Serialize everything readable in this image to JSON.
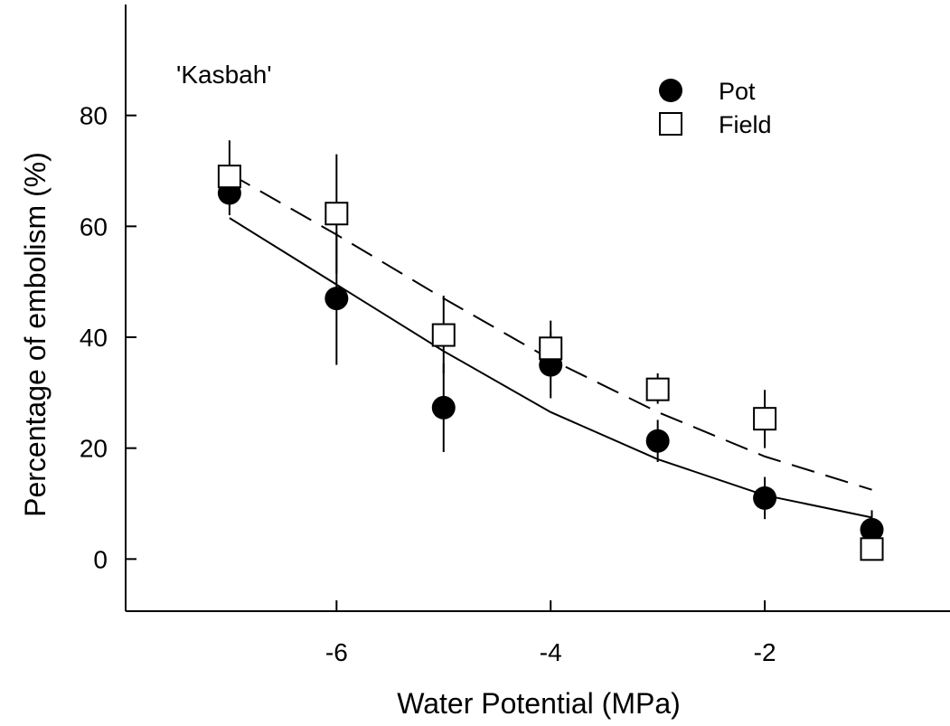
{
  "chart_data": {
    "type": "scatter",
    "annotation": "'Kasbah'",
    "xlabel": "Water Potential (MPa)",
    "ylabel": "Percentage of embolism (%)",
    "xlim": [
      -7.97,
      -0.27
    ],
    "ylim": [
      -9.4,
      100
    ],
    "x_ticks": [
      -6,
      -4,
      -2
    ],
    "y_ticks": [
      0,
      20,
      40,
      60,
      80
    ],
    "grid": false,
    "legend_position": "top-right",
    "series": [
      {
        "name": "Pot",
        "marker": "filled-circle",
        "color": "#000000",
        "points": [
          {
            "x": -7,
            "y": 66,
            "err_low": 62,
            "err_high": 70
          },
          {
            "x": -6,
            "y": 47,
            "err_low": 35,
            "err_high": 59
          },
          {
            "x": -5,
            "y": 27.3,
            "err_low": 19.3,
            "err_high": 35.3
          },
          {
            "x": -4,
            "y": 35,
            "err_low": 29,
            "err_high": 41
          },
          {
            "x": -3,
            "y": 21.3,
            "err_low": 17.5,
            "err_high": 25.1
          },
          {
            "x": -2,
            "y": 11,
            "err_low": 7.2,
            "err_high": 14.8
          },
          {
            "x": -1,
            "y": 5.3,
            "err_low": 1.8,
            "err_high": 8.8
          }
        ],
        "fit_line": {
          "style": "solid",
          "x": [
            -7,
            -6,
            -5,
            -4,
            -3,
            -2,
            -1
          ],
          "y": [
            61.5,
            49.5,
            37.5,
            26.5,
            18,
            11.5,
            7.5
          ]
        }
      },
      {
        "name": "Field",
        "marker": "open-square",
        "color": "#000000",
        "points": [
          {
            "x": -7,
            "y": 69,
            "err_low": 64,
            "err_high": 75.5
          },
          {
            "x": -6,
            "y": 62.3,
            "err_low": 51.5,
            "err_high": 73
          },
          {
            "x": -5,
            "y": 40.4,
            "err_low": 33.5,
            "err_high": 47.5
          },
          {
            "x": -4,
            "y": 38,
            "err_low": 33,
            "err_high": 43
          },
          {
            "x": -3,
            "y": 30.6,
            "err_low": 28,
            "err_high": 33.5
          },
          {
            "x": -2,
            "y": 25.3,
            "err_low": 20,
            "err_high": 30.5
          },
          {
            "x": -1,
            "y": 1.8,
            "err_low": 0,
            "err_high": 3.6
          }
        ],
        "fit_line": {
          "style": "dashed",
          "x": [
            -7,
            -6,
            -5,
            -4,
            -3,
            -2,
            -1
          ],
          "y": [
            69.5,
            58.5,
            47,
            36,
            26.5,
            18.5,
            12.5
          ]
        }
      }
    ]
  }
}
